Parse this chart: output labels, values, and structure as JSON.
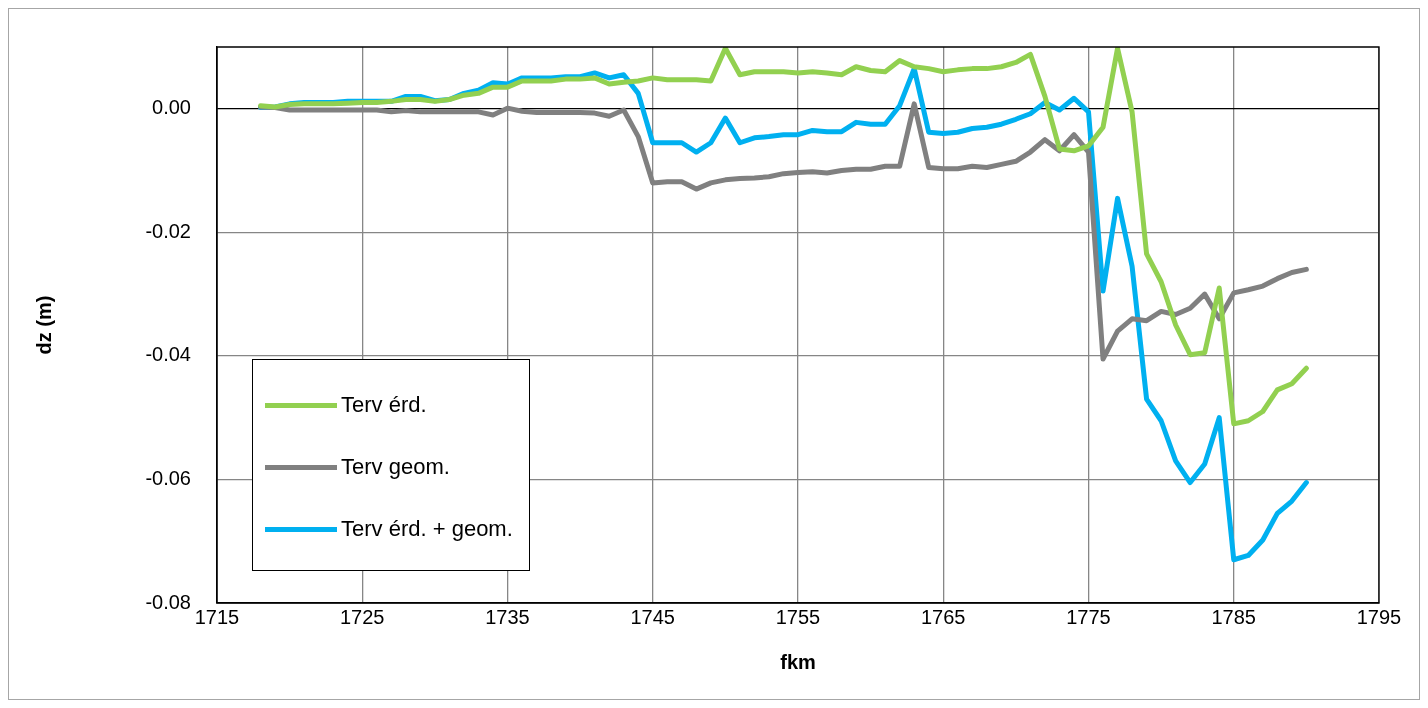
{
  "chart_data": {
    "type": "line",
    "xlabel": "fkm",
    "ylabel": "dz (m)",
    "x": [
      1718,
      1719,
      1720,
      1721,
      1722,
      1723,
      1724,
      1725,
      1726,
      1727,
      1728,
      1729,
      1730,
      1731,
      1732,
      1733,
      1734,
      1735,
      1736,
      1737,
      1738,
      1739,
      1740,
      1741,
      1742,
      1743,
      1744,
      1745,
      1746,
      1747,
      1748,
      1749,
      1750,
      1751,
      1752,
      1753,
      1754,
      1755,
      1756,
      1757,
      1758,
      1759,
      1760,
      1761,
      1762,
      1763,
      1764,
      1765,
      1766,
      1767,
      1768,
      1769,
      1770,
      1771,
      1772,
      1773,
      1774,
      1775,
      1776,
      1777,
      1778,
      1779,
      1780,
      1781,
      1782,
      1783,
      1784,
      1785,
      1786,
      1787,
      1788,
      1789,
      1790
    ],
    "series": [
      {
        "name": "Terv érd.",
        "color": "#92d050",
        "values": [
          0.0005,
          0.0003,
          0.0007,
          0.0008,
          0.0008,
          0.0008,
          0.0009,
          0.001,
          0.001,
          0.0012,
          0.0015,
          0.0015,
          0.0012,
          0.0015,
          0.0022,
          0.0025,
          0.0035,
          0.0035,
          0.0045,
          0.0045,
          0.0045,
          0.0048,
          0.0048,
          0.005,
          0.004,
          0.0043,
          0.0045,
          0.005,
          0.0047,
          0.0047,
          0.0047,
          0.0045,
          0.0098,
          0.0055,
          0.006,
          0.006,
          0.006,
          0.0058,
          0.006,
          0.0058,
          0.0055,
          0.0068,
          0.0062,
          0.006,
          0.0078,
          0.0068,
          0.0065,
          0.006,
          0.0063,
          0.0065,
          0.0065,
          0.0068,
          0.0075,
          0.0088,
          0.002,
          -0.0065,
          -0.0068,
          -0.006,
          -0.003,
          0.0098,
          -0.0005,
          -0.0235,
          -0.028,
          -0.035,
          -0.0398,
          -0.0395,
          -0.029,
          -0.051,
          -0.0505,
          -0.049,
          -0.0455,
          -0.0445,
          -0.042
        ]
      },
      {
        "name": "Terv geom.",
        "color": "#808080",
        "values": [
          0.0003,
          0.0002,
          -0.0002,
          -0.0002,
          -0.0002,
          -0.0002,
          -0.0002,
          -0.0002,
          -0.0002,
          -0.0005,
          -0.0003,
          -0.0005,
          -0.0005,
          -0.0005,
          -0.0005,
          -0.0005,
          -0.001,
          0.0001,
          -0.0004,
          -0.0006,
          -0.0006,
          -0.0006,
          -0.0006,
          -0.0007,
          -0.0012,
          -0.0002,
          -0.0045,
          -0.012,
          -0.0118,
          -0.0118,
          -0.013,
          -0.012,
          -0.0115,
          -0.0113,
          -0.0112,
          -0.011,
          -0.0105,
          -0.0103,
          -0.0102,
          -0.0104,
          -0.01,
          -0.0098,
          -0.0098,
          -0.0093,
          -0.0093,
          0.0008,
          -0.0095,
          -0.0097,
          -0.0097,
          -0.0093,
          -0.0095,
          -0.009,
          -0.0085,
          -0.007,
          -0.005,
          -0.0068,
          -0.0042,
          -0.007,
          -0.0405,
          -0.036,
          -0.034,
          -0.0343,
          -0.0328,
          -0.0333,
          -0.0323,
          -0.03,
          -0.034,
          -0.0298,
          -0.0293,
          -0.0287,
          -0.0275,
          -0.0265,
          -0.026
        ]
      },
      {
        "name": "Terv érd. + geom.",
        "color": "#00b0f0",
        "values": [
          0.0002,
          0.0003,
          0.0008,
          0.001,
          0.001,
          0.001,
          0.0012,
          0.0012,
          0.0012,
          0.0012,
          0.002,
          0.002,
          0.0013,
          0.0015,
          0.0025,
          0.003,
          0.0042,
          0.004,
          0.005,
          0.005,
          0.005,
          0.0052,
          0.0052,
          0.0058,
          0.005,
          0.0055,
          0.0025,
          -0.0055,
          -0.0055,
          -0.0055,
          -0.007,
          -0.0055,
          -0.0015,
          -0.0055,
          -0.0047,
          -0.0045,
          -0.0042,
          -0.0042,
          -0.0035,
          -0.0037,
          -0.0037,
          -0.0022,
          -0.0025,
          -0.0025,
          0.0005,
          0.0065,
          -0.0038,
          -0.004,
          -0.0038,
          -0.0032,
          -0.003,
          -0.0025,
          -0.0017,
          -0.0008,
          0.001,
          -0.0002,
          0.0017,
          -0.0005,
          -0.0295,
          -0.0145,
          -0.0255,
          -0.047,
          -0.0505,
          -0.057,
          -0.0605,
          -0.0575,
          -0.05,
          -0.073,
          -0.0723,
          -0.0698,
          -0.0655,
          -0.0635,
          -0.0605
        ]
      }
    ],
    "xlim": [
      1715,
      1795
    ],
    "xticks": [
      1715,
      1725,
      1735,
      1745,
      1755,
      1765,
      1775,
      1785,
      1795
    ],
    "ylim": [
      -0.08,
      0.01
    ],
    "yticks": [
      {
        "value": -0.08,
        "label": "-0.08"
      },
      {
        "value": -0.06,
        "label": "-0.06"
      },
      {
        "value": -0.04,
        "label": "-0.04"
      },
      {
        "value": -0.02,
        "label": "-0.02"
      },
      {
        "value": 0,
        "label": "0.00"
      }
    ],
    "grid": true,
    "legend": "bottom left",
    "marker": "none",
    "line_style": "solid"
  }
}
